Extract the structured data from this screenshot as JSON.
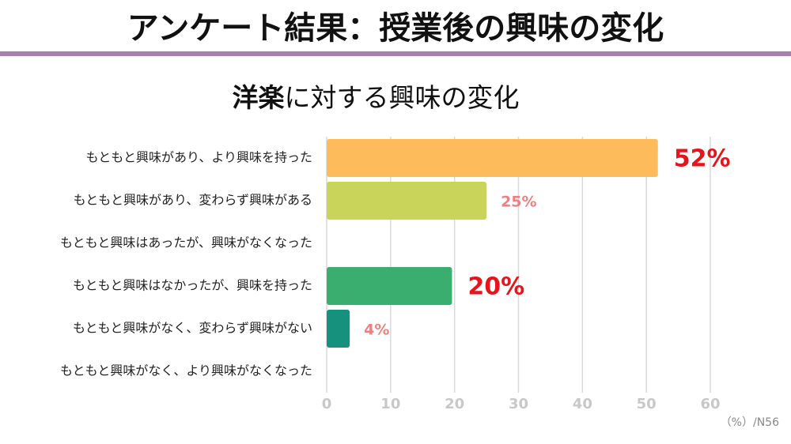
{
  "header": {
    "title": "アンケート結果：授業後の興味の変化"
  },
  "chart_data": {
    "type": "bar",
    "orientation": "horizontal",
    "title": [
      "洋楽",
      "に対する興味の変化"
    ],
    "categories": [
      "もともと興味があり、より興味を持った",
      "もともと興味があり、変わらず興味がある",
      "もともと興味はあったが、興味がなくなった",
      "もともと興味はなかったが、興味を持った",
      "もともと興味がなく、変わらず興味がない",
      "もともと興味がなく、より興味がなくなった"
    ],
    "values": [
      51.8,
      25,
      0,
      19.6,
      3.6,
      0
    ],
    "value_labels": [
      "52%",
      "25%",
      null,
      "20%",
      "4%",
      null
    ],
    "colors": [
      "#fdbb5c",
      "#c8d45a",
      null,
      "#3aae6e",
      "#16917e",
      null
    ],
    "value_label_colors": [
      "#e8141b",
      "#ef8080",
      null,
      "#e8141b",
      "#ef8080",
      null
    ],
    "xlim": [
      0,
      60
    ],
    "xticks": [
      0,
      10,
      20,
      30,
      40,
      50,
      60
    ],
    "grid": true,
    "note": "（%）/N56"
  }
}
